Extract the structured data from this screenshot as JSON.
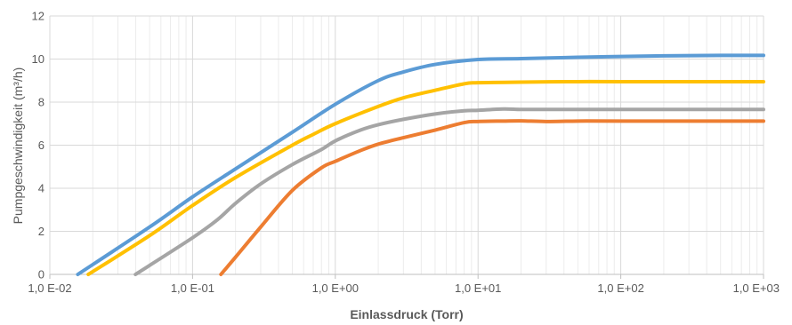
{
  "chart_data": {
    "type": "line",
    "xscale": "log",
    "xlabel": "Einlassdruck (Torr)",
    "ylabel": "Pumpgeschwindigkeit (m³/h)",
    "xlim": [
      0.01,
      1000
    ],
    "ylim": [
      0,
      12
    ],
    "x_ticks": [
      {
        "value": 0.01,
        "label": "1,0 E-02"
      },
      {
        "value": 0.1,
        "label": "1,0 E-01"
      },
      {
        "value": 1,
        "label": "1,0 E+00"
      },
      {
        "value": 10,
        "label": "1,0 E+01"
      },
      {
        "value": 100,
        "label": "1,0 E+02"
      },
      {
        "value": 1000,
        "label": "1,0 E+03"
      }
    ],
    "y_ticks": [
      {
        "value": 0,
        "label": "0"
      },
      {
        "value": 2,
        "label": "2"
      },
      {
        "value": 4,
        "label": "4"
      },
      {
        "value": 6,
        "label": "6"
      },
      {
        "value": 8,
        "label": "8"
      },
      {
        "value": 10,
        "label": "10"
      },
      {
        "value": 12,
        "label": "12"
      }
    ],
    "grid": true,
    "legend": "none",
    "series": [
      {
        "color": "#5b9bd5",
        "x": [
          0.0157,
          0.05,
          0.1,
          0.2,
          0.5,
          1,
          2,
          3,
          5,
          10,
          20,
          50,
          100,
          200,
          500,
          1000
        ],
        "y": [
          0,
          2.2,
          3.6,
          4.9,
          6.6,
          7.9,
          9.0,
          9.4,
          9.75,
          9.98,
          10.02,
          10.08,
          10.12,
          10.15,
          10.17,
          10.17
        ]
      },
      {
        "color": "#ffc000",
        "x": [
          0.0186,
          0.05,
          0.1,
          0.2,
          0.5,
          0.7,
          1,
          2,
          3,
          5,
          8,
          10,
          20,
          50,
          100,
          1000
        ],
        "y": [
          0,
          1.8,
          3.2,
          4.5,
          6.0,
          6.5,
          7.0,
          7.8,
          8.2,
          8.55,
          8.85,
          8.9,
          8.93,
          8.95,
          8.95,
          8.95
        ]
      },
      {
        "color": "#a5a5a5",
        "x": [
          0.0398,
          0.1,
          0.15,
          0.2,
          0.3,
          0.5,
          0.8,
          1,
          1.5,
          2,
          3,
          5,
          8,
          10,
          15,
          20,
          30,
          50,
          100,
          1000
        ],
        "y": [
          0,
          1.7,
          2.55,
          3.3,
          4.2,
          5.1,
          5.8,
          6.2,
          6.7,
          6.95,
          7.2,
          7.45,
          7.6,
          7.62,
          7.68,
          7.66,
          7.66,
          7.66,
          7.66,
          7.66
        ]
      },
      {
        "color": "#ed7d31",
        "x": [
          0.158,
          0.2,
          0.3,
          0.5,
          0.8,
          1,
          1.5,
          2,
          3,
          5,
          8,
          10,
          15,
          20,
          30,
          50,
          100,
          1000
        ],
        "y": [
          0,
          0.8,
          2.2,
          3.9,
          4.95,
          5.25,
          5.75,
          6.05,
          6.35,
          6.7,
          7.05,
          7.1,
          7.12,
          7.13,
          7.1,
          7.12,
          7.12,
          7.12
        ]
      }
    ]
  }
}
